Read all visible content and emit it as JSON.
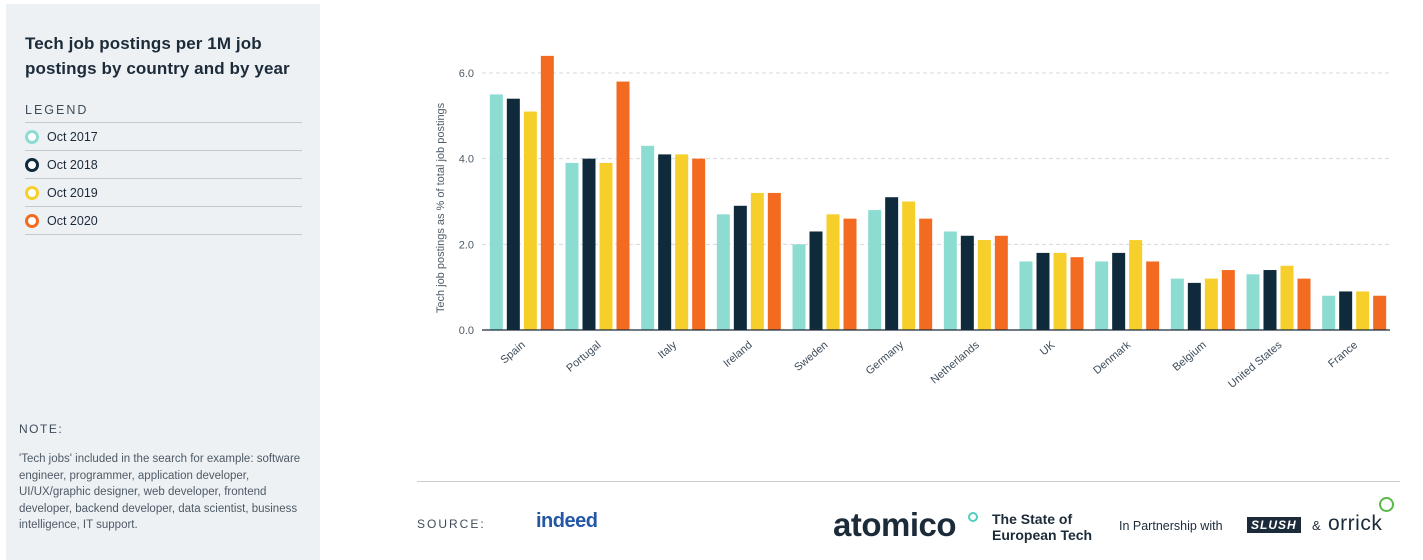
{
  "sidebar": {
    "title": "Tech job postings per 1M job postings by country and by year",
    "legend_heading": "LEGEND",
    "note_heading": "NOTE:",
    "note_text": "'Tech jobs' included in the search for example: software engineer, programmer, application developer, UI/UX/graphic designer, web developer, frontend developer, backend developer, data scientist, business intelligence, IT support."
  },
  "colors": {
    "oct2017": "#8ddcd1",
    "oct2018": "#0e2a3b",
    "oct2019": "#f6cf2a",
    "oct2020": "#f26b21",
    "grid": "#d5d9dd",
    "axis": "#1c2b39"
  },
  "chart_data": {
    "type": "bar",
    "title": "Tech job postings per 1M job postings by country and by year",
    "ylabel": "Tech job postings as % of total job postings",
    "xlabel": "",
    "ylim": [
      0,
      6.0
    ],
    "yticks": [
      "0.0",
      "2.0",
      "4.0",
      "6.0"
    ],
    "ytick_values": [
      0,
      2,
      4,
      6
    ],
    "grid": "horizontal-dashed",
    "categories": [
      "Spain",
      "Portugal",
      "Italy",
      "Ireland",
      "Sweden",
      "Germany",
      "Netherlands",
      "UK",
      "Denmark",
      "Belgium",
      "United States",
      "France"
    ],
    "series": [
      {
        "name": "Oct 2017",
        "color": "#8ddcd1",
        "values": [
          5.5,
          3.9,
          4.3,
          2.7,
          2.0,
          2.8,
          2.3,
          1.6,
          1.6,
          1.2,
          1.3,
          0.8
        ]
      },
      {
        "name": "Oct 2018",
        "color": "#0e2a3b",
        "values": [
          5.4,
          4.0,
          4.1,
          2.9,
          2.3,
          3.1,
          2.2,
          1.8,
          1.8,
          1.1,
          1.4,
          0.9
        ]
      },
      {
        "name": "Oct 2019",
        "color": "#f6cf2a",
        "values": [
          5.1,
          3.9,
          4.1,
          3.2,
          2.7,
          3.0,
          2.1,
          1.8,
          2.1,
          1.2,
          1.5,
          0.9
        ]
      },
      {
        "name": "Oct 2020",
        "color": "#f26b21",
        "values": [
          6.4,
          5.8,
          4.0,
          3.2,
          2.6,
          2.6,
          2.2,
          1.7,
          1.6,
          1.4,
          1.2,
          0.8
        ]
      }
    ]
  },
  "footer": {
    "source_label": "SOURCE:",
    "source_name": "indeed",
    "brand": "atomico",
    "report_line1": "The State of",
    "report_line2": "European Tech",
    "partnership": "In Partnership with",
    "partner1": "SLUSH",
    "amp": "&",
    "partner2": "orrick"
  }
}
